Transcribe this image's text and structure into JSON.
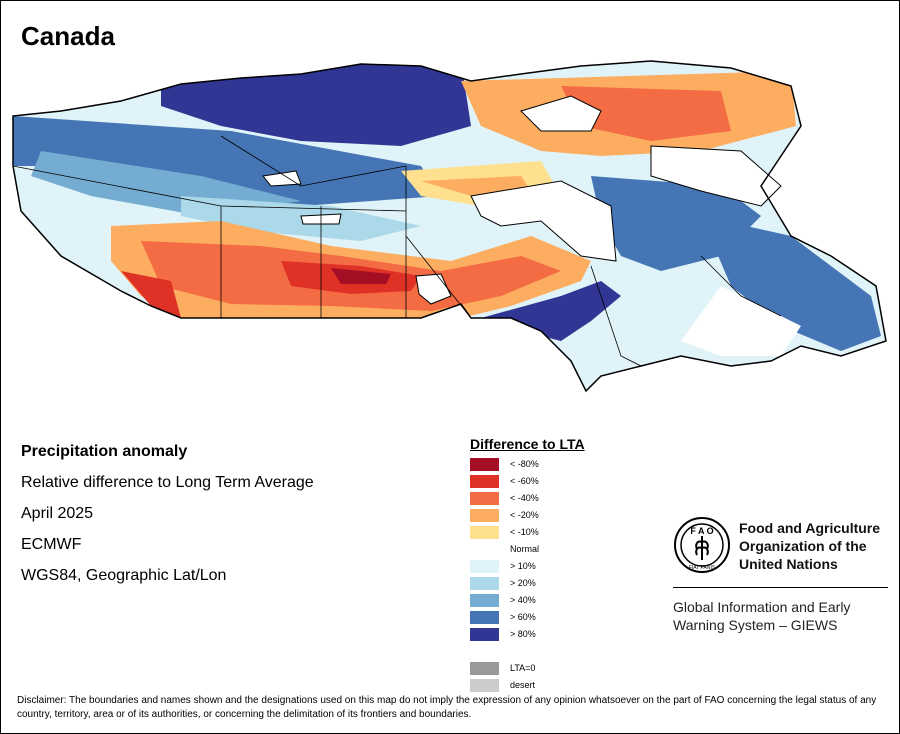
{
  "title": "Canada",
  "info": {
    "heading": "Precipitation anomaly",
    "subtitle": "Relative difference to Long Term Average",
    "period": "April 2025",
    "source": "ECMWF",
    "projection": "WGS84, Geographic Lat/Lon"
  },
  "legend": {
    "title": "Difference to LTA",
    "items": [
      {
        "label": "< -80%",
        "color": "#a50f26"
      },
      {
        "label": "< -60%",
        "color": "#e03127"
      },
      {
        "label": "< -40%",
        "color": "#f46c43"
      },
      {
        "label": "< -20%",
        "color": "#fdad60"
      },
      {
        "label": "< -10%",
        "color": "#fee08f"
      },
      {
        "label": "Normal",
        "color": "#ffffff"
      },
      {
        "label": "> 10%",
        "color": "#e0f3f8"
      },
      {
        "label": "> 20%",
        "color": "#abd9e9"
      },
      {
        "label": "> 40%",
        "color": "#74add1"
      },
      {
        "label": "> 60%",
        "color": "#4575b4"
      },
      {
        "label": "> 80%",
        "color": "#313695"
      },
      {
        "label": "",
        "color": "#ffffff"
      },
      {
        "label": "LTA=0",
        "color": "#999999"
      },
      {
        "label": "desert",
        "color": "#cccccc"
      }
    ]
  },
  "logo": {
    "org_line1": "Food and Agriculture",
    "org_line2": "Organization of the",
    "org_line3": "United Nations",
    "emblem_letters": "F A O",
    "emblem_motto": "FIAT PANIS"
  },
  "giews": {
    "line1": "Global Information and Early",
    "line2": "Warning System – GIEWS"
  },
  "disclaimer": "Disclaimer: The boundaries and names shown and the designations used on this map do not imply the expression of any opinion whatsoever on the part of FAO concerning the legal status of any country, territory, area or of its authorities, or concerning the delimitation of its frontiers and boundaries."
}
